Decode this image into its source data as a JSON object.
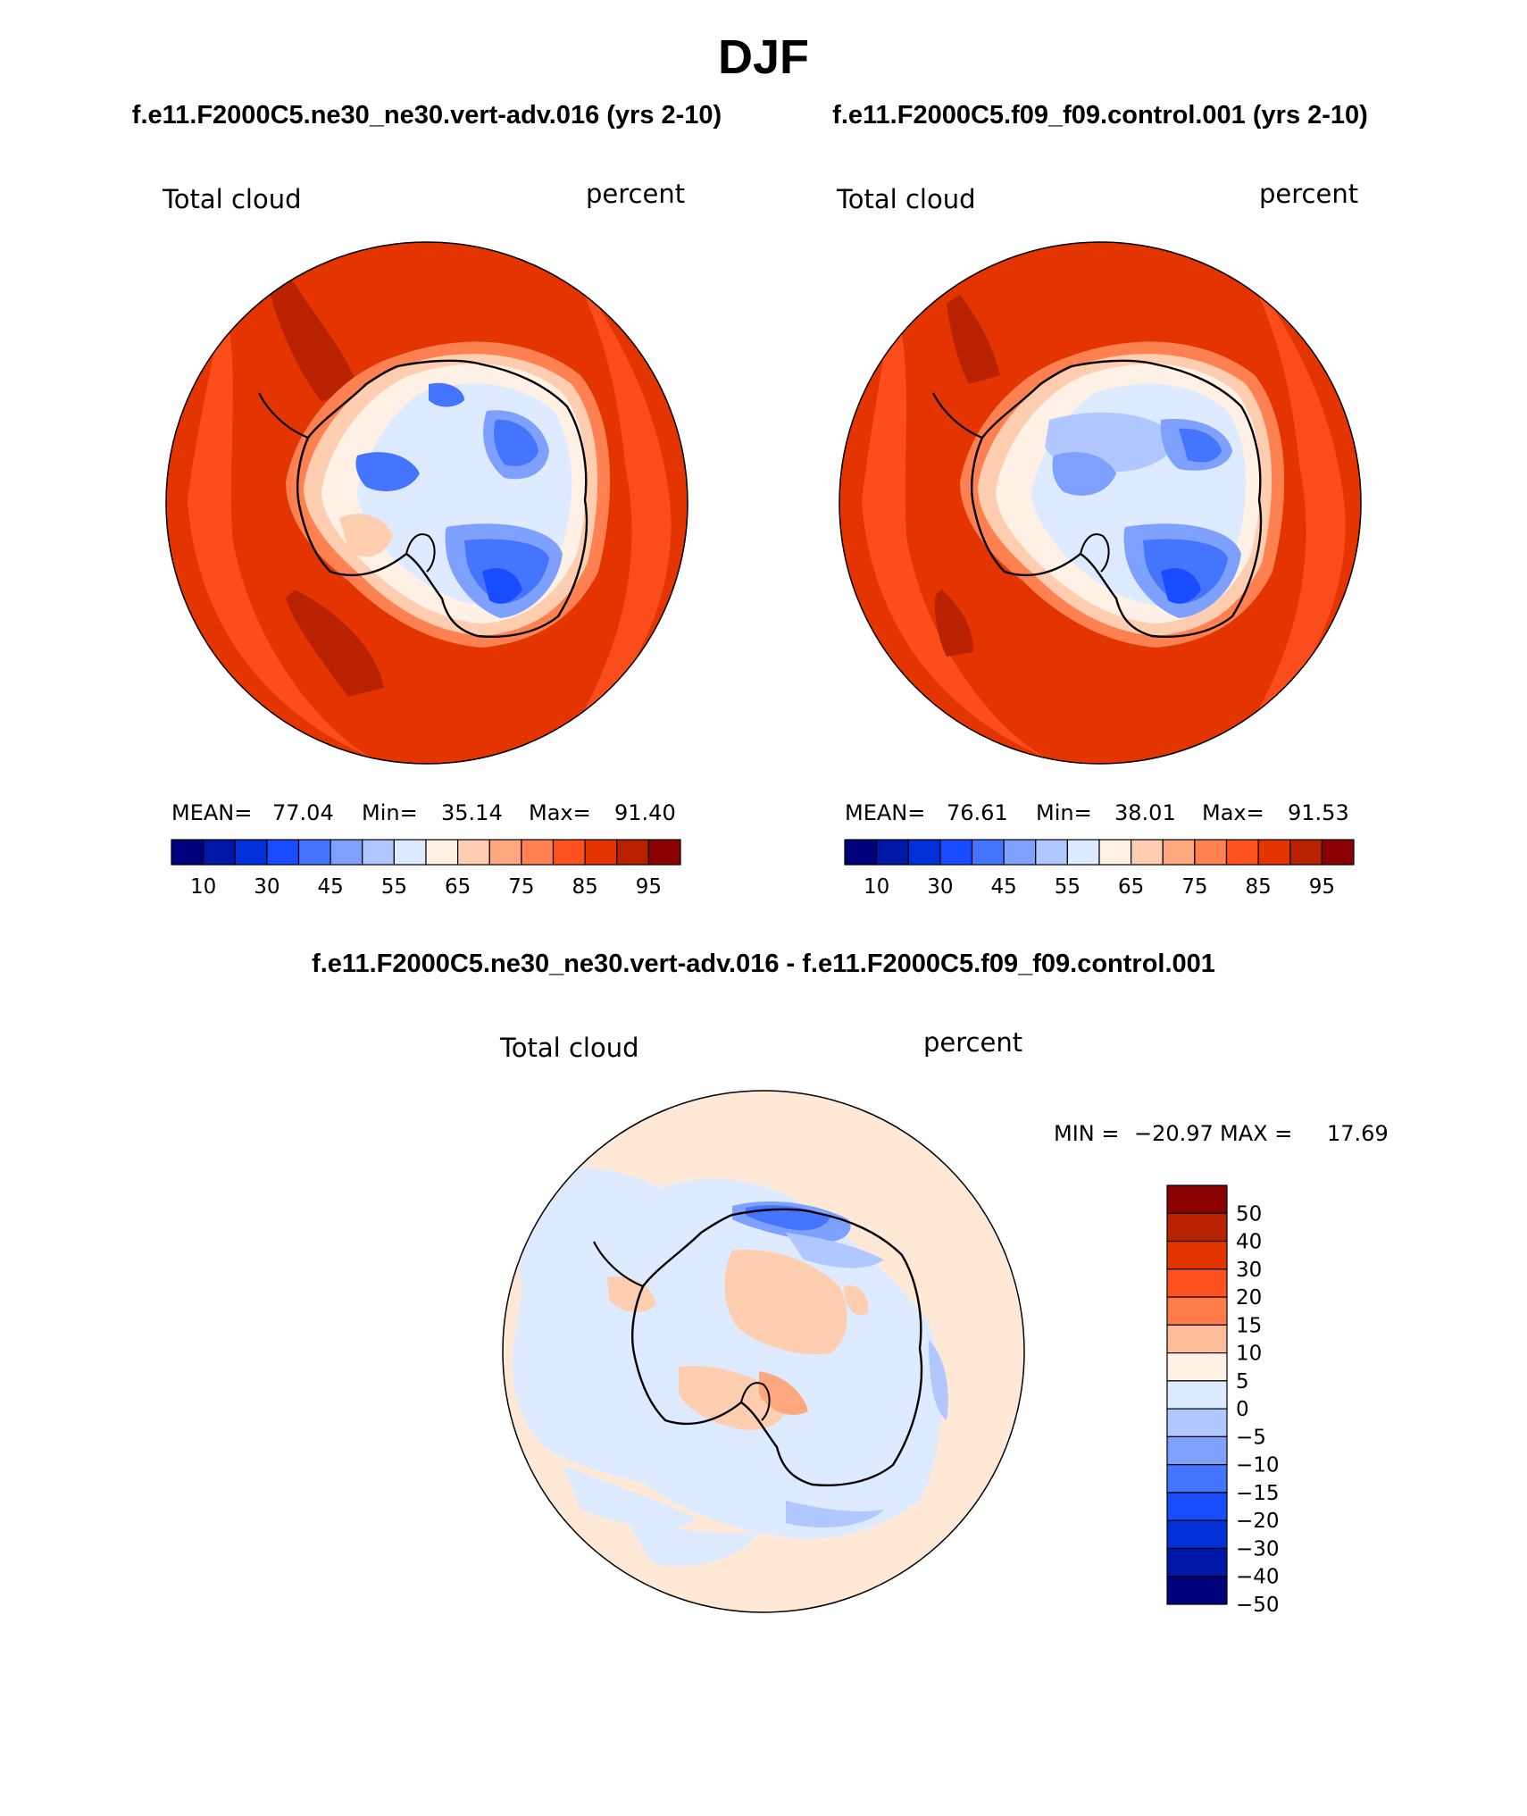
{
  "title": "DJF",
  "panels": [
    {
      "case": "f.e11.F2000C5.ne30_ne30.vert-adv.016 (yrs 2-10)",
      "variable": "Total cloud",
      "units": "percent",
      "stats": {
        "mean_label": "MEAN=",
        "mean": "77.04",
        "min_label": "Min=",
        "min": "35.14",
        "max_label": "Max=",
        "max": "91.40"
      }
    },
    {
      "case": "f.e11.F2000C5.f09_f09.control.001 (yrs 2-10)",
      "variable": "Total cloud",
      "units": "percent",
      "stats": {
        "mean_label": "MEAN=",
        "mean": "76.61",
        "min_label": "Min=",
        "min": "38.01",
        "max_label": "Max=",
        "max": "91.53"
      }
    }
  ],
  "abs_colorbar": {
    "colors": [
      "#00007f",
      "#0018a8",
      "#0031d8",
      "#1a4cff",
      "#4575ff",
      "#7ea1ff",
      "#b0c8ff",
      "#ddeaff",
      "#fff1e6",
      "#ffcdb0",
      "#ffa880",
      "#ff8050",
      "#ff5020",
      "#e43500",
      "#b82200",
      "#8b0000"
    ],
    "labels": [
      "10",
      "30",
      "45",
      "55",
      "65",
      "75",
      "85",
      "95"
    ]
  },
  "diff_panel": {
    "title": "f.e11.F2000C5.ne30_ne30.vert-adv.016 - f.e11.F2000C5.f09_f09.control.001",
    "variable": "Total cloud",
    "units": "percent",
    "minmax": {
      "min_label": "MIN =",
      "min": "−20.97",
      "max_label": "MAX =",
      "max": "17.69"
    }
  },
  "diff_colorbar": {
    "colors": [
      "#8b0000",
      "#b82200",
      "#e43500",
      "#ff5020",
      "#ff7b48",
      "#ffbc99",
      "#fff1e6",
      "#ddeaff",
      "#b0c8ff",
      "#7ea1ff",
      "#4575ff",
      "#1a4cff",
      "#0031d8",
      "#0018a8",
      "#00007f"
    ],
    "labels": [
      "50",
      "40",
      "30",
      "20",
      "15",
      "10",
      "5",
      "0",
      "−5",
      "−10",
      "−15",
      "−20",
      "−30",
      "−40",
      "−50"
    ]
  },
  "colors": {
    "ocean_high": "#e43500",
    "ocean_mid": "#ff5020",
    "ocean_max": "#b82200",
    "diff_bg": "#ffe8d6",
    "diff_neg": "#ddeaff"
  }
}
